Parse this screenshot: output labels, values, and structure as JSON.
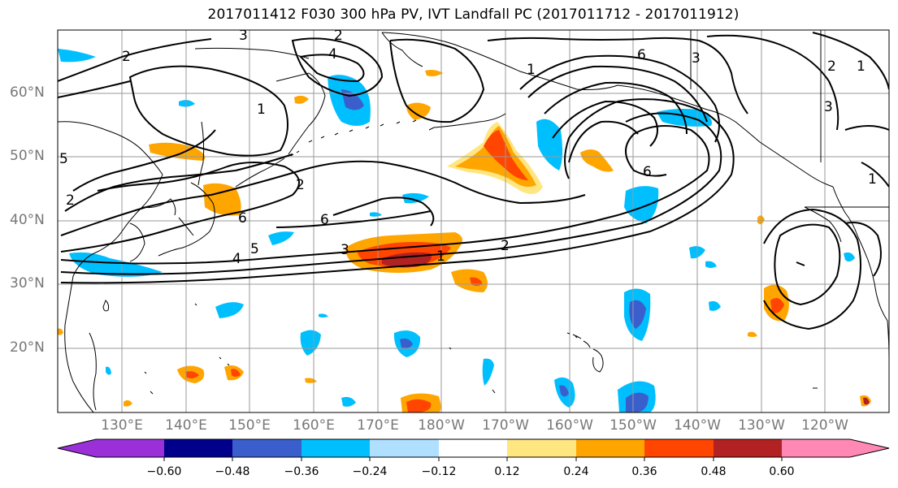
{
  "title": "2017011412 F030 300 hPa PV, IVT Landfall PC (2017011712 - 2017011912)",
  "lat_labels": [
    "60°N",
    "50°N",
    "40°N",
    "30°N",
    "20°N"
  ],
  "lon_labels": [
    "130°E",
    "140°E",
    "150°E",
    "160°E",
    "170°E",
    "180°W",
    "170°W",
    "160°W",
    "150°W",
    "140°W",
    "130°W",
    "120°W"
  ],
  "colorbar": {
    "ticks": [
      "−0.60",
      "−0.48",
      "−0.36",
      "−0.24",
      "−0.12",
      "0.12",
      "0.24",
      "0.36",
      "0.48",
      "0.60"
    ],
    "colors": [
      "#9b30d9",
      "#00008b",
      "#3a5fcd",
      "#00bfff",
      "#b0e0ff",
      "#ffffff",
      "#ffe680",
      "#ffa500",
      "#ff4500",
      "#b22222",
      "#ff88b4"
    ]
  },
  "colors": {
    "neg_strong": "#3a5fcd",
    "neg_mid": "#00bfff",
    "neg_weak": "#b0e0ff",
    "pos_weak": "#ffe680",
    "pos_mid": "#ffa500",
    "pos_strong": "#ff4500",
    "pos_max": "#b22222",
    "contour": "#000000",
    "coast": "#000000",
    "grid": "#999999"
  },
  "contour_labels": [
    "3",
    "2",
    "4",
    "2",
    "1",
    "5",
    "2",
    "6",
    "6",
    "4",
    "5",
    "3",
    "1",
    "2",
    "1",
    "6",
    "6",
    "3",
    "2",
    "1",
    "2",
    "3",
    "1"
  ],
  "extent": "120°E–115°W, 10°N–70°N"
}
